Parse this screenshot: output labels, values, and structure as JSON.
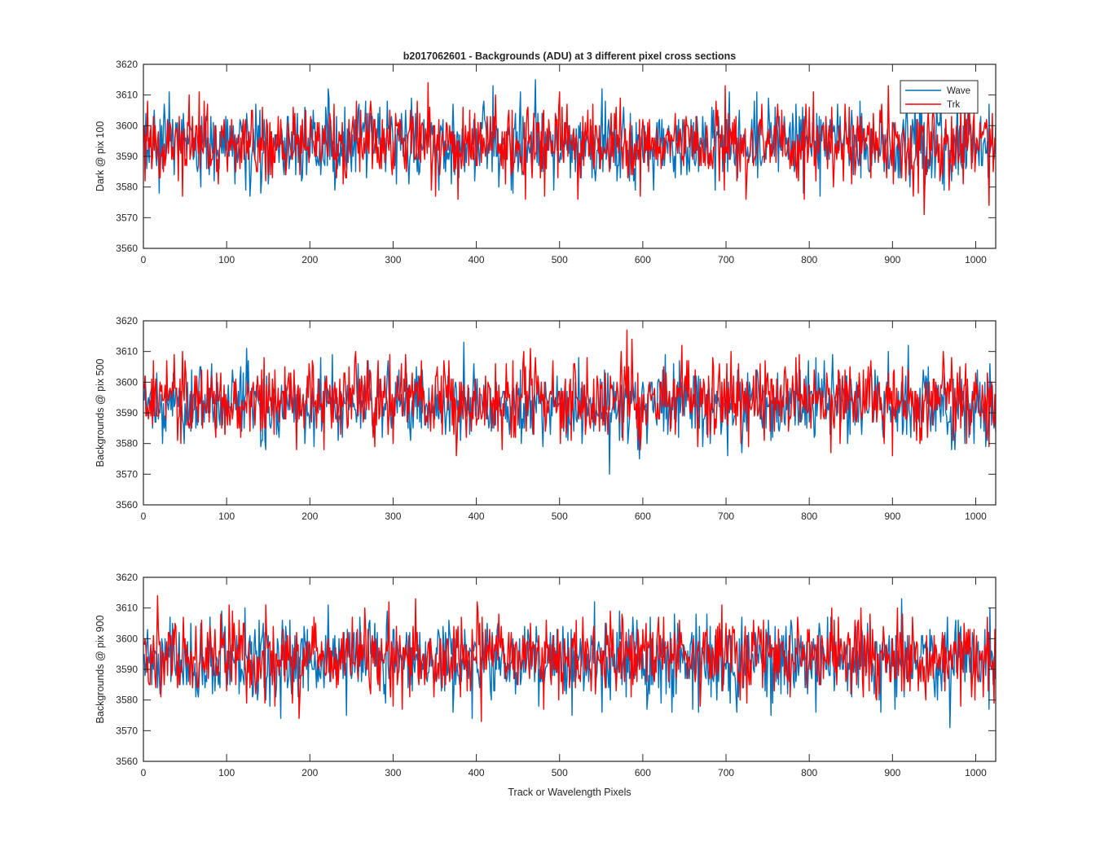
{
  "figure": {
    "title": "b2017062601 - Backgrounds (ADU) at 3 different pixel cross sections",
    "xlabel": "Track or Wavelength Pixels"
  },
  "legend": {
    "placement": "top-right",
    "entries": [
      "Wave",
      "Trk"
    ]
  },
  "colors": {
    "Wave": "#0072BD",
    "Trk": "#FF0000",
    "axes": "#262626",
    "background": "#ffffff"
  },
  "chart_data": [
    {
      "type": "line",
      "title": "b2017062601 - Backgrounds (ADU) at 3 different pixel cross sections",
      "ylabel": "Dark @ pix 100",
      "xlabel": "",
      "xlim": [
        0,
        1024
      ],
      "ylim": [
        3560,
        3620
      ],
      "xticks": [
        0,
        100,
        200,
        300,
        400,
        500,
        600,
        700,
        800,
        900,
        1000
      ],
      "yticks": [
        3560,
        3570,
        3580,
        3590,
        3600,
        3610,
        3620
      ],
      "grid": false,
      "legend": "top-right",
      "series_summary": [
        {
          "name": "Wave",
          "points": 1024,
          "mean": 3594,
          "min": 3569,
          "max": 3617
        },
        {
          "name": "Trk",
          "points": 1024,
          "mean": 3594,
          "min": 3568,
          "max": 3615
        }
      ]
    },
    {
      "type": "line",
      "title": "",
      "ylabel": "Backgrounds @ pix 500",
      "xlabel": "",
      "xlim": [
        0,
        1024
      ],
      "ylim": [
        3560,
        3620
      ],
      "xticks": [
        0,
        100,
        200,
        300,
        400,
        500,
        600,
        700,
        800,
        900,
        1000
      ],
      "yticks": [
        3560,
        3570,
        3580,
        3590,
        3600,
        3610,
        3620
      ],
      "grid": false,
      "series_summary": [
        {
          "name": "Wave",
          "points": 1024,
          "mean": 3593,
          "min": 3570,
          "max": 3616
        },
        {
          "name": "Trk",
          "points": 1024,
          "mean": 3594,
          "min": 3568,
          "max": 3618
        }
      ]
    },
    {
      "type": "line",
      "title": "",
      "ylabel": "Backgrounds @ pix 900",
      "xlabel": "Track or Wavelength Pixels",
      "xlim": [
        0,
        1024
      ],
      "ylim": [
        3560,
        3620
      ],
      "xticks": [
        0,
        100,
        200,
        300,
        400,
        500,
        600,
        700,
        800,
        900,
        1000
      ],
      "yticks": [
        3560,
        3570,
        3580,
        3590,
        3600,
        3610,
        3620
      ],
      "grid": false,
      "series_summary": [
        {
          "name": "Wave",
          "points": 1024,
          "mean": 3593,
          "min": 3568,
          "max": 3617
        },
        {
          "name": "Trk",
          "points": 1024,
          "mean": 3594,
          "min": 3570,
          "max": 3618
        }
      ]
    }
  ]
}
